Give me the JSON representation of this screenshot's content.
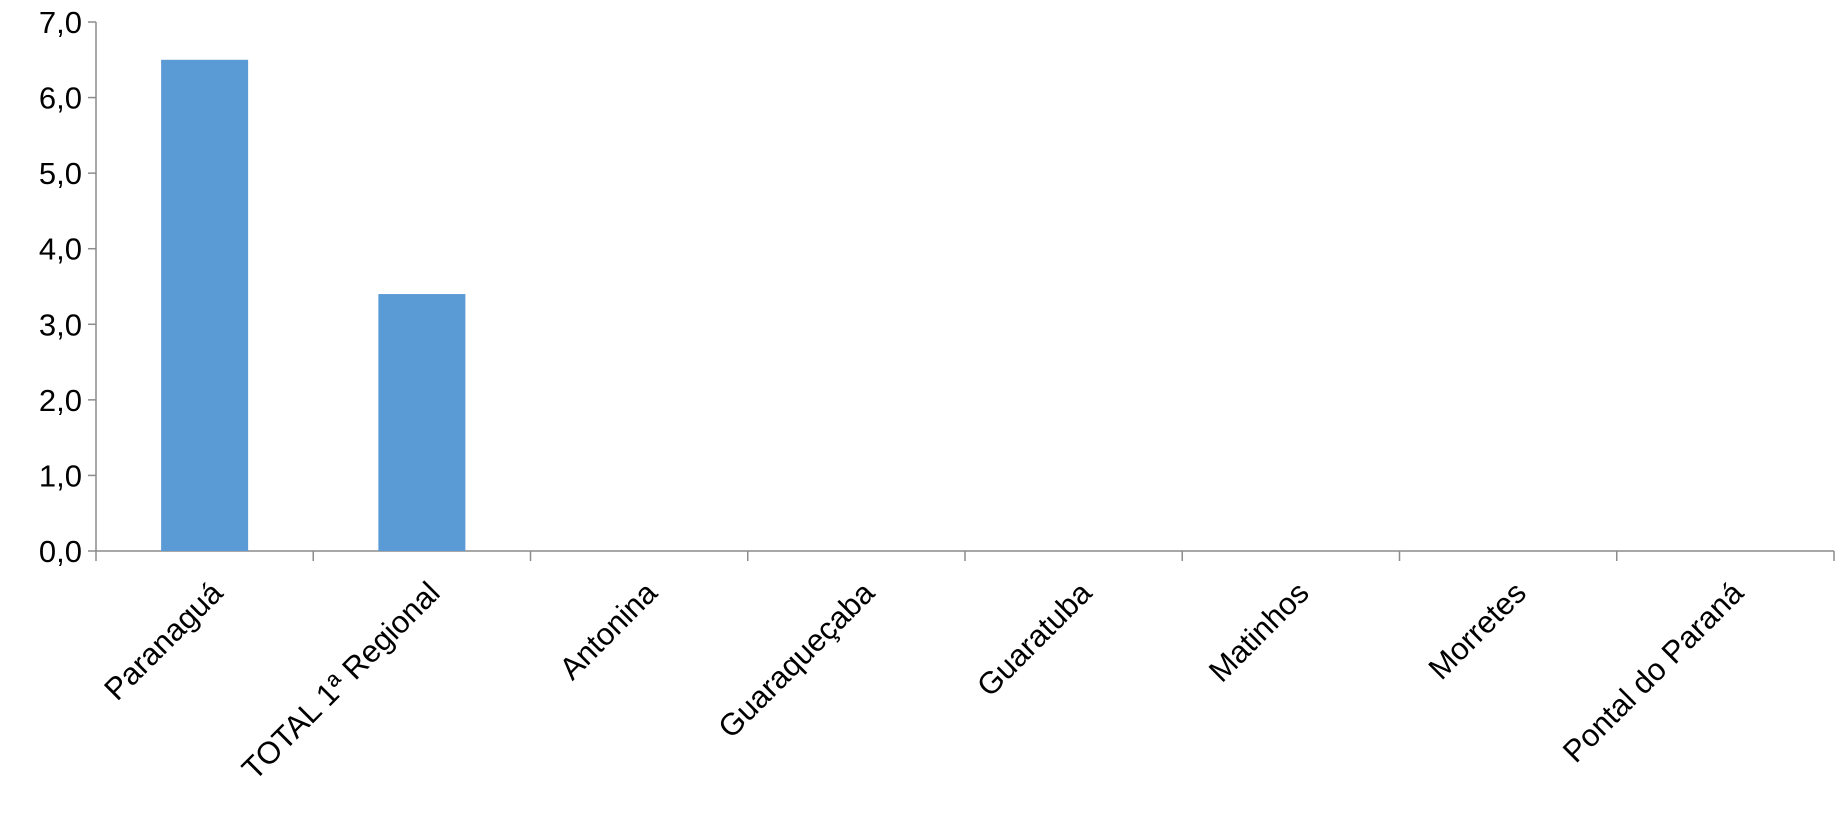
{
  "chart_data": {
    "type": "bar",
    "categories": [
      "Paranaguá",
      "TOTAL 1ª Regional",
      "Antonina",
      "Guaraqueçaba",
      "Guaratuba",
      "Matinhos",
      "Morretes",
      "Pontal do Paraná"
    ],
    "values": [
      6.5,
      3.4,
      0.0,
      0.0,
      0.0,
      0.0,
      0.0,
      0.0
    ],
    "title": "",
    "xlabel": "",
    "ylabel": "",
    "ylim": [
      0,
      7
    ],
    "yticks": [
      "0,0",
      "1,0",
      "2,0",
      "3,0",
      "4,0",
      "5,0",
      "6,0",
      "7,0"
    ],
    "grid": false,
    "legend": "none",
    "bar_color": "#5b9bd5"
  }
}
